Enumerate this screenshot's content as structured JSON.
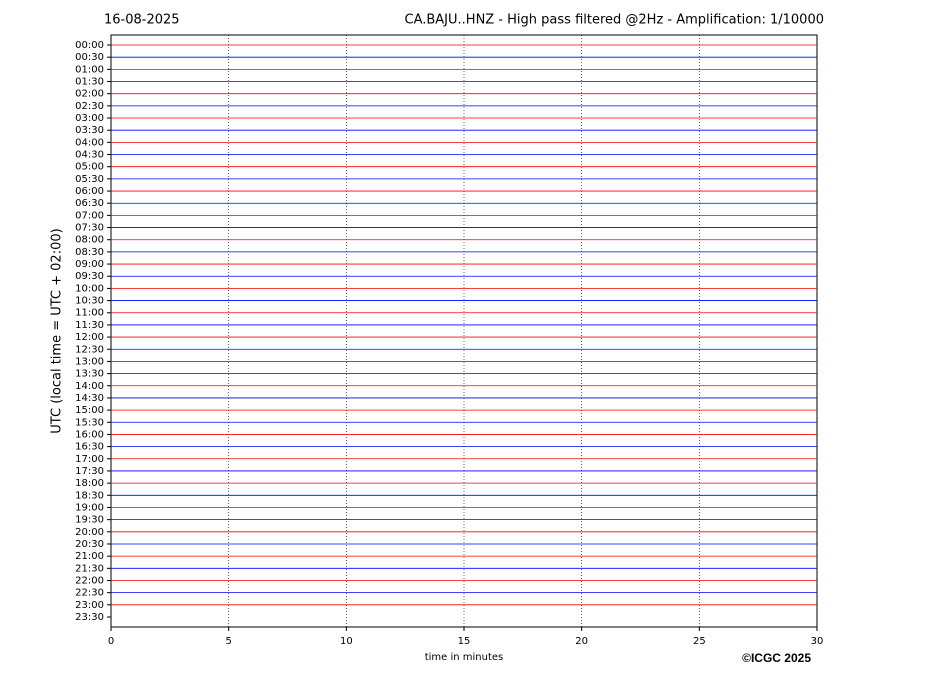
{
  "chart_data": {
    "type": "helicorder",
    "date": "16-08-2025",
    "title": "CA.BAJU..HNZ - High pass filtered @2Hz - Amplification: 1/10000",
    "ylabel": "UTC (local time = UTC + 02:00)",
    "xlabel": "time in minutes",
    "copyright": "©ICGC 2025",
    "categories": [
      "00:00",
      "00:30",
      "01:00",
      "01:30",
      "02:00",
      "02:30",
      "03:00",
      "03:30",
      "04:00",
      "04:30",
      "05:00",
      "05:30",
      "06:00",
      "06:30",
      "07:00",
      "07:30",
      "08:00",
      "08:30",
      "09:00",
      "09:30",
      "10:00",
      "10:30",
      "11:00",
      "11:30",
      "12:00",
      "12:30",
      "13:00",
      "13:30",
      "14:00",
      "14:30",
      "15:00",
      "15:30",
      "16:00",
      "16:30",
      "17:00",
      "17:30",
      "18:00",
      "18:30",
      "19:00",
      "19:30",
      "20:00",
      "20:30",
      "21:00",
      "21:30",
      "22:00",
      "22:30",
      "23:00",
      "23:30"
    ],
    "trace_colors": [
      "#ff0000",
      "#0000ff",
      "#ff0000",
      "#0000ff",
      "#ff0000",
      "#0000ff",
      "#ff0000",
      "#0000ff",
      "#ff0000",
      "#0000ff",
      "#ff0000",
      "#0000ff",
      "#ff0000",
      "#0000ff",
      "#ff0000",
      "#0000ff",
      "#ff0000",
      "#0000ff",
      "#ff0000",
      "#0000ff",
      "#ff0000",
      "#0000ff",
      "#ff0000",
      "#0000ff",
      "#ff0000",
      "#0000ff",
      "#ff0000",
      "#0000ff",
      "#ff0000",
      "#0000ff",
      "#ff0000",
      "#0000ff",
      "#ff0000",
      "#0000ff",
      "#ff0000",
      "#0000ff",
      "#ff0000",
      "#0000ff",
      "#ff0000",
      "#0000ff",
      "#ff0000",
      "#0000ff",
      "#ff0000",
      "#0000ff",
      "#ff0000",
      "#0000ff",
      "#ff0000",
      null
    ],
    "xlim": [
      0,
      30
    ],
    "xticks": [
      0,
      5,
      10,
      15,
      20,
      25,
      30
    ],
    "grid": true
  }
}
